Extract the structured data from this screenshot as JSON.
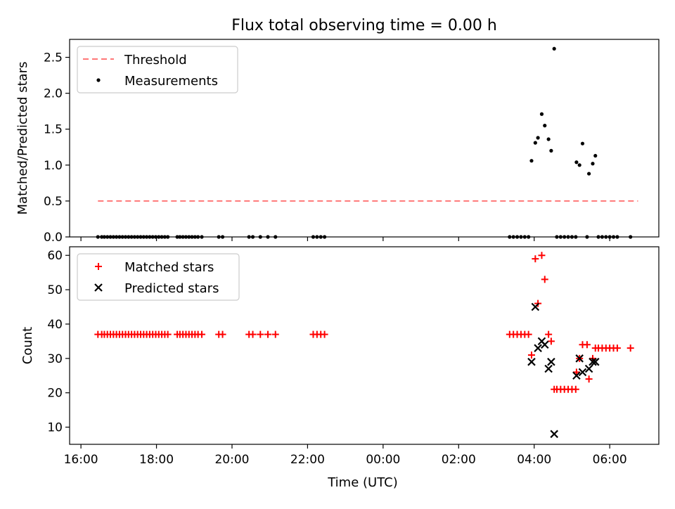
{
  "title": "Flux total observing time = 0.00 h",
  "chart_data": [
    {
      "type": "scatter",
      "ylabel": "Matched/Predicted stars",
      "xlabel": "",
      "ylim": [
        0,
        2.75
      ],
      "yticks": [
        "0.0",
        "0.5",
        "1.0",
        "1.5",
        "2.0",
        "2.5"
      ],
      "yticks_values": [
        0,
        0.5,
        1.0,
        1.5,
        2.0,
        2.5
      ],
      "x_unit": "hours since 16:00 UTC",
      "xlim": [
        -0.3,
        15.3
      ],
      "legend_position": "top-left",
      "threshold": {
        "name": "Threshold",
        "value": 0.5,
        "x_range": [
          0.45,
          14.75
        ],
        "color": "#ff7777",
        "style": "dashed"
      },
      "series": [
        {
          "name": "Measurements",
          "color": "#000000",
          "marker": "dot",
          "points": [
            [
              0.45,
              0
            ],
            [
              0.55,
              0
            ],
            [
              0.62,
              0
            ],
            [
              0.7,
              0
            ],
            [
              0.78,
              0
            ],
            [
              0.86,
              0
            ],
            [
              0.94,
              0
            ],
            [
              1.02,
              0
            ],
            [
              1.1,
              0
            ],
            [
              1.18,
              0
            ],
            [
              1.26,
              0
            ],
            [
              1.34,
              0
            ],
            [
              1.42,
              0
            ],
            [
              1.5,
              0
            ],
            [
              1.58,
              0
            ],
            [
              1.66,
              0
            ],
            [
              1.74,
              0
            ],
            [
              1.82,
              0
            ],
            [
              1.9,
              0
            ],
            [
              1.98,
              0
            ],
            [
              2.06,
              0
            ],
            [
              2.14,
              0
            ],
            [
              2.22,
              0
            ],
            [
              2.3,
              0
            ],
            [
              2.55,
              0
            ],
            [
              2.62,
              0
            ],
            [
              2.7,
              0
            ],
            [
              2.78,
              0
            ],
            [
              2.86,
              0
            ],
            [
              2.94,
              0
            ],
            [
              3.02,
              0
            ],
            [
              3.1,
              0
            ],
            [
              3.2,
              0
            ],
            [
              3.65,
              0
            ],
            [
              3.75,
              0
            ],
            [
              4.45,
              0
            ],
            [
              4.55,
              0
            ],
            [
              4.75,
              0
            ],
            [
              4.95,
              0
            ],
            [
              5.15,
              0
            ],
            [
              6.15,
              0
            ],
            [
              6.25,
              0
            ],
            [
              6.35,
              0
            ],
            [
              6.45,
              0
            ],
            [
              11.35,
              0
            ],
            [
              11.45,
              0
            ],
            [
              11.55,
              0
            ],
            [
              11.65,
              0
            ],
            [
              11.75,
              0
            ],
            [
              11.85,
              0
            ],
            [
              11.93,
              1.06
            ],
            [
              12.03,
              1.31
            ],
            [
              12.1,
              1.38
            ],
            [
              12.2,
              1.71
            ],
            [
              12.28,
              1.55
            ],
            [
              12.38,
              1.36
            ],
            [
              12.45,
              1.2
            ],
            [
              12.53,
              2.62
            ],
            [
              12.6,
              0
            ],
            [
              12.7,
              0
            ],
            [
              12.8,
              0
            ],
            [
              12.9,
              0
            ],
            [
              13.0,
              0
            ],
            [
              13.1,
              0
            ],
            [
              13.12,
              1.04
            ],
            [
              13.2,
              1.0
            ],
            [
              13.28,
              1.3
            ],
            [
              13.4,
              0
            ],
            [
              13.45,
              0.88
            ],
            [
              13.55,
              1.02
            ],
            [
              13.62,
              1.13
            ],
            [
              13.7,
              0
            ],
            [
              13.8,
              0
            ],
            [
              13.9,
              0
            ],
            [
              14.0,
              0
            ],
            [
              14.1,
              0
            ],
            [
              14.2,
              0
            ],
            [
              14.55,
              0
            ]
          ]
        }
      ]
    },
    {
      "type": "scatter",
      "ylabel": "Count",
      "xlabel": "Time (UTC)",
      "ylim": [
        5,
        62.5
      ],
      "yticks": [
        "10",
        "20",
        "30",
        "40",
        "50",
        "60"
      ],
      "yticks_values": [
        10,
        20,
        30,
        40,
        50,
        60
      ],
      "x_unit": "hours since 16:00 UTC",
      "xlim": [
        -0.3,
        15.3
      ],
      "xticks": [
        "16:00",
        "18:00",
        "20:00",
        "22:00",
        "00:00",
        "02:00",
        "04:00",
        "06:00"
      ],
      "xticks_values": [
        0,
        2,
        4,
        6,
        8,
        10,
        12,
        14
      ],
      "legend_position": "top-left",
      "series": [
        {
          "name": "Matched stars",
          "color": "#ff0000",
          "marker": "plus",
          "points": [
            [
              0.45,
              37
            ],
            [
              0.55,
              37
            ],
            [
              0.62,
              37
            ],
            [
              0.7,
              37
            ],
            [
              0.78,
              37
            ],
            [
              0.86,
              37
            ],
            [
              0.94,
              37
            ],
            [
              1.02,
              37
            ],
            [
              1.1,
              37
            ],
            [
              1.18,
              37
            ],
            [
              1.26,
              37
            ],
            [
              1.34,
              37
            ],
            [
              1.42,
              37
            ],
            [
              1.5,
              37
            ],
            [
              1.58,
              37
            ],
            [
              1.66,
              37
            ],
            [
              1.74,
              37
            ],
            [
              1.82,
              37
            ],
            [
              1.9,
              37
            ],
            [
              1.98,
              37
            ],
            [
              2.06,
              37
            ],
            [
              2.14,
              37
            ],
            [
              2.22,
              37
            ],
            [
              2.3,
              37
            ],
            [
              2.55,
              37
            ],
            [
              2.62,
              37
            ],
            [
              2.7,
              37
            ],
            [
              2.78,
              37
            ],
            [
              2.86,
              37
            ],
            [
              2.94,
              37
            ],
            [
              3.02,
              37
            ],
            [
              3.1,
              37
            ],
            [
              3.2,
              37
            ],
            [
              3.65,
              37
            ],
            [
              3.75,
              37
            ],
            [
              4.45,
              37
            ],
            [
              4.55,
              37
            ],
            [
              4.75,
              37
            ],
            [
              4.95,
              37
            ],
            [
              5.15,
              37
            ],
            [
              6.15,
              37
            ],
            [
              6.25,
              37
            ],
            [
              6.35,
              37
            ],
            [
              6.45,
              37
            ],
            [
              11.35,
              37
            ],
            [
              11.45,
              37
            ],
            [
              11.55,
              37
            ],
            [
              11.65,
              37
            ],
            [
              11.75,
              37
            ],
            [
              11.85,
              37
            ],
            [
              11.93,
              31
            ],
            [
              12.03,
              59
            ],
            [
              12.1,
              46
            ],
            [
              12.2,
              60
            ],
            [
              12.28,
              53
            ],
            [
              12.38,
              37
            ],
            [
              12.45,
              35
            ],
            [
              12.53,
              21
            ],
            [
              12.6,
              21
            ],
            [
              12.7,
              21
            ],
            [
              12.8,
              21
            ],
            [
              12.9,
              21
            ],
            [
              13.0,
              21
            ],
            [
              13.1,
              21
            ],
            [
              13.12,
              26
            ],
            [
              13.2,
              30
            ],
            [
              13.28,
              34
            ],
            [
              13.4,
              34
            ],
            [
              13.45,
              24
            ],
            [
              13.55,
              30
            ],
            [
              13.62,
              33
            ],
            [
              13.7,
              33
            ],
            [
              13.8,
              33
            ],
            [
              13.9,
              33
            ],
            [
              14.0,
              33
            ],
            [
              14.1,
              33
            ],
            [
              14.2,
              33
            ],
            [
              14.55,
              33
            ]
          ]
        },
        {
          "name": "Predicted stars",
          "color": "#000000",
          "marker": "x",
          "points": [
            [
              11.93,
              29
            ],
            [
              12.03,
              45
            ],
            [
              12.1,
              33
            ],
            [
              12.2,
              35
            ],
            [
              12.28,
              34
            ],
            [
              12.38,
              27
            ],
            [
              12.45,
              29
            ],
            [
              12.53,
              8
            ],
            [
              13.12,
              25
            ],
            [
              13.2,
              30
            ],
            [
              13.28,
              26
            ],
            [
              13.45,
              27
            ],
            [
              13.55,
              29
            ],
            [
              13.62,
              29
            ]
          ]
        }
      ]
    }
  ]
}
